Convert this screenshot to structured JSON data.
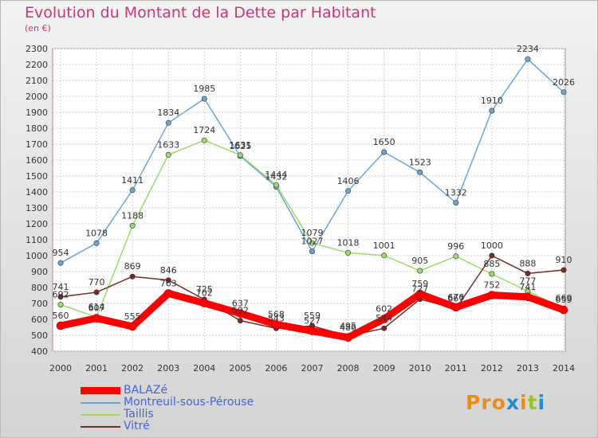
{
  "title": "Evolution du Montant de la Dette par Habitant",
  "subtitle": "(en €)",
  "logo": {
    "text": "Proxiti",
    "colors": [
      "#e98c1a",
      "#e98c1a",
      "#e98c1a",
      "#1a8fd6",
      "#e98c1a",
      "#9ac31c",
      "#1a8fd6"
    ]
  },
  "chart_data": {
    "type": "line",
    "x": [
      "2000",
      "2001",
      "2002",
      "2003",
      "2004",
      "2005",
      "2006",
      "2007",
      "2008",
      "2009",
      "2010",
      "2011",
      "2012",
      "2013",
      "2014"
    ],
    "ylim": [
      400,
      2300
    ],
    "yticks": [
      "400",
      "500",
      "600",
      "700",
      "800",
      "900",
      "1000",
      "1100",
      "1200",
      "1300",
      "1400",
      "1500",
      "1600",
      "1700",
      "1800",
      "1900",
      "2000",
      "2100",
      "2200",
      "2300"
    ],
    "grid": true,
    "legend_position": "bottom-left",
    "series": [
      {
        "name": "BALAZé",
        "color": "#ff0000",
        "width": 9,
        "values": [
          560,
          607,
          555,
          763,
          702,
          637,
          568,
          527,
          486,
          602,
          759,
          676,
          752,
          741,
          659
        ]
      },
      {
        "name": "Montreuil-sous-Pérouse",
        "color": "#6aa5d6",
        "width": 1.5,
        "values": [
          954,
          1078,
          1411,
          1834,
          1985,
          1625,
          1432,
          1027,
          1406,
          1650,
          1523,
          1332,
          1910,
          2234,
          2026
        ]
      },
      {
        "name": "Taillis",
        "color": "#9bdb6a",
        "width": 1.5,
        "values": [
          692,
          614,
          1188,
          1633,
          1724,
          1631,
          1444,
          1079,
          1018,
          1001,
          905,
          996,
          885,
          777,
          669
        ]
      },
      {
        "name": "Vitré",
        "color": "#7a2a2a",
        "width": 1.5,
        "values": [
          741,
          770,
          869,
          846,
          725,
          592,
          543,
          559,
          495,
          544,
          727,
          667,
          1000,
          888,
          910
        ]
      }
    ]
  }
}
